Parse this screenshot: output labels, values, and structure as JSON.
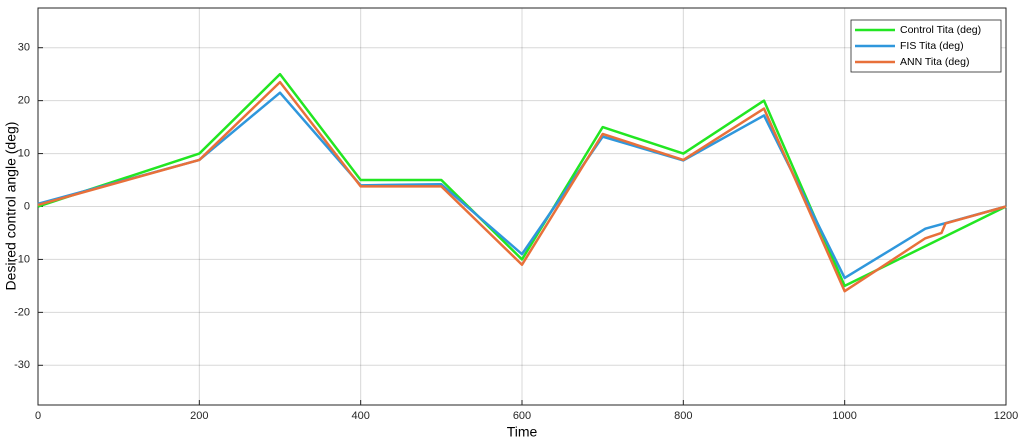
{
  "chart_data": {
    "type": "line",
    "xlabel": "Time",
    "ylabel": "Desired control angle (deg)",
    "xlim": [
      0,
      1200
    ],
    "xticks": [
      0,
      200,
      400,
      600,
      800,
      1000,
      1200
    ],
    "ylim": [
      -37.5,
      37.5
    ],
    "yticks": [
      -30,
      -20,
      -10,
      0,
      10,
      20,
      30
    ],
    "grid": true,
    "legend": "upper-right",
    "series": [
      {
        "name": "Control Tita (deg)",
        "color": "#22e622",
        "x": [
          0,
          200,
          300,
          400,
          500,
          600,
          700,
          800,
          900,
          1000,
          1200
        ],
        "values": [
          0,
          10,
          25,
          5,
          5,
          -10,
          15,
          10,
          20,
          -15,
          0
        ]
      },
      {
        "name": "FIS Tita (deg)",
        "color": "#2f97dc",
        "x": [
          0,
          200,
          300,
          400,
          500,
          600,
          700,
          800,
          900,
          1000,
          1100,
          1200
        ],
        "values": [
          0.5,
          8.8,
          21.5,
          4,
          4.2,
          -9,
          13.2,
          8.7,
          17.2,
          -13.5,
          -4.2,
          0
        ]
      },
      {
        "name": "ANN Tita (deg)",
        "color": "#e8703a",
        "x": [
          0,
          200,
          300,
          400,
          500,
          600,
          700,
          800,
          900,
          1000,
          1100,
          1120,
          1125,
          1200
        ],
        "values": [
          0.3,
          8.8,
          23.5,
          3.8,
          3.8,
          -11,
          13.7,
          8.8,
          18.5,
          -16,
          -6,
          -5,
          -3.2,
          0
        ]
      }
    ]
  }
}
